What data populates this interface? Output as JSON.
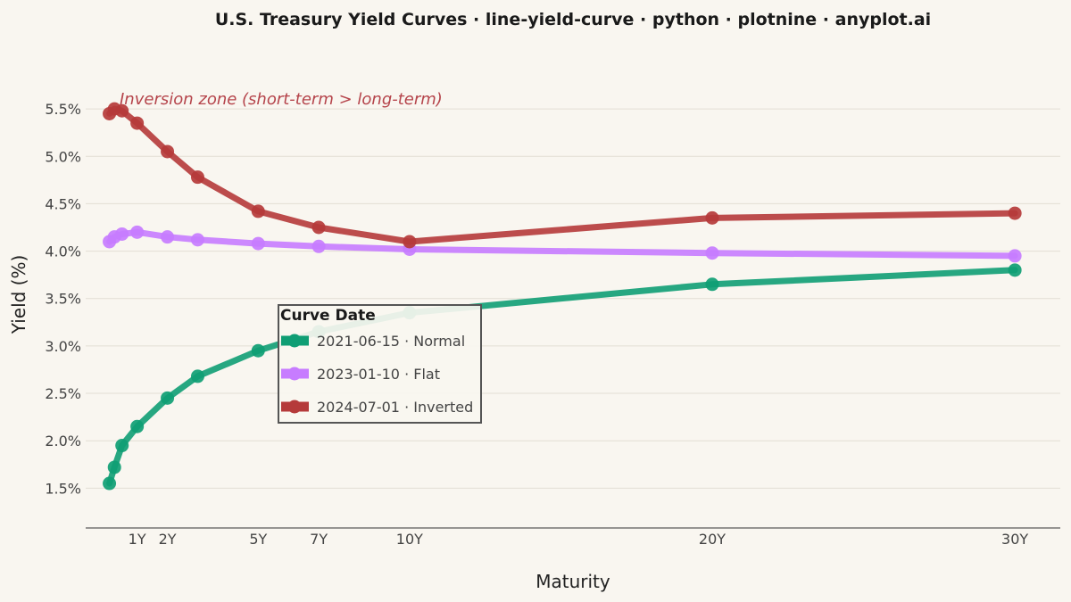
{
  "chart_data": {
    "type": "line",
    "title": "U.S. Treasury Yield Curves · line-yield-curve · python · plotnine · anyplot.ai",
    "xlabel": "Maturity",
    "ylabel": "Yield (%)",
    "x_ticks": [
      {
        "value": 1,
        "label": "1Y"
      },
      {
        "value": 2,
        "label": "2Y"
      },
      {
        "value": 5,
        "label": "5Y"
      },
      {
        "value": 7,
        "label": "7Y"
      },
      {
        "value": 10,
        "label": "10Y"
      },
      {
        "value": 20,
        "label": "20Y"
      },
      {
        "value": 30,
        "label": "30Y"
      }
    ],
    "y_ticks": [
      {
        "value": 1.5,
        "label": "1.5%"
      },
      {
        "value": 2.0,
        "label": "2.0%"
      },
      {
        "value": 2.5,
        "label": "2.5%"
      },
      {
        "value": 3.0,
        "label": "3.0%"
      },
      {
        "value": 3.5,
        "label": "3.5%"
      },
      {
        "value": 4.0,
        "label": "4.0%"
      },
      {
        "value": 4.5,
        "label": "4.5%"
      },
      {
        "value": 5.0,
        "label": "5.0%"
      },
      {
        "value": 5.5,
        "label": "5.5%"
      }
    ],
    "xlim": [
      -0.7,
      31.5
    ],
    "ylim": [
      1.08,
      5.52
    ],
    "x": [
      0.083,
      0.25,
      0.5,
      1,
      2,
      3,
      5,
      7,
      10,
      20,
      30
    ],
    "series": [
      {
        "name": "2021-06-15 · Normal",
        "color": "#0f9e74",
        "values": [
          1.55,
          1.72,
          1.95,
          2.15,
          2.45,
          2.68,
          2.95,
          3.15,
          3.35,
          3.65,
          3.8
        ]
      },
      {
        "name": "2023-01-10 · Flat",
        "color": "#c77cff",
        "values": [
          4.1,
          4.15,
          4.18,
          4.2,
          4.15,
          4.12,
          4.08,
          4.05,
          4.02,
          3.98,
          3.95
        ]
      },
      {
        "name": "2024-07-01 · Inverted",
        "color": "#b53a3a",
        "values": [
          5.45,
          5.5,
          5.48,
          5.35,
          5.05,
          4.78,
          4.42,
          4.25,
          4.1,
          4.35,
          4.4
        ]
      }
    ],
    "annotation": "Inversion zone (short-term > long-term)",
    "legend": {
      "title": "Curve Date",
      "position": "center-left"
    },
    "grid": true
  }
}
